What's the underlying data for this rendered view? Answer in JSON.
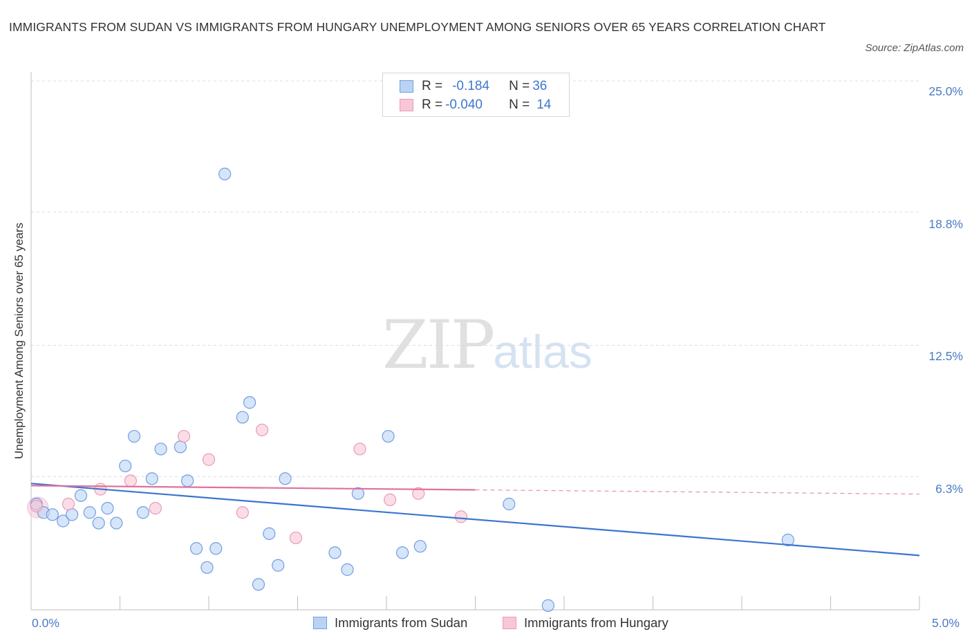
{
  "title": "IMMIGRANTS FROM SUDAN VS IMMIGRANTS FROM HUNGARY UNEMPLOYMENT AMONG SENIORS OVER 65 YEARS CORRELATION CHART",
  "source": "Source: ZipAtlas.com",
  "watermark": {
    "zip": "ZIP",
    "atlas": "atlas"
  },
  "colors": {
    "sudan": "#3a74d0",
    "hungary": "#e0719a",
    "sudan_fill": "#bad3f5",
    "hungary_fill": "#f8c7d7",
    "tick": "#4a7cc4"
  },
  "legend": {
    "rows": [
      {
        "r_label": "R = ",
        "r_value": "-0.184",
        "n_label": "N = ",
        "n_value": "36"
      },
      {
        "r_label": "R = ",
        "r_value": "-0.040",
        "n_label": "N = ",
        "n_value": "14"
      }
    ]
  },
  "bottom_legend": [
    "Immigrants from Sudan",
    "Immigrants from Hungary"
  ],
  "chart_data": {
    "type": "scatter",
    "title": "IMMIGRANTS FROM SUDAN VS IMMIGRANTS FROM HUNGARY UNEMPLOYMENT AMONG SENIORS OVER 65 YEARS CORRELATION CHART",
    "xlabel": "",
    "ylabel": "Unemployment Among Seniors over 65 years",
    "xlim": [
      0,
      5.0
    ],
    "ylim": [
      0,
      25.0
    ],
    "x_tick_labels": [
      "0.0%",
      "5.0%"
    ],
    "y_tick_labels": [
      "25.0%",
      "18.8%",
      "12.5%",
      "6.3%"
    ],
    "y_ticks": [
      25.0,
      18.8,
      12.5,
      6.3
    ],
    "grid": true,
    "series": [
      {
        "name": "Immigrants from Sudan",
        "points": [
          [
            0.03,
            5.0
          ],
          [
            0.07,
            4.6
          ],
          [
            0.12,
            4.5
          ],
          [
            0.18,
            4.2
          ],
          [
            0.23,
            4.5
          ],
          [
            0.28,
            5.4
          ],
          [
            0.33,
            4.6
          ],
          [
            0.38,
            4.1
          ],
          [
            0.43,
            4.8
          ],
          [
            0.48,
            4.1
          ],
          [
            0.53,
            6.8
          ],
          [
            0.58,
            8.2
          ],
          [
            0.63,
            4.6
          ],
          [
            0.68,
            6.2
          ],
          [
            0.73,
            7.6
          ],
          [
            0.84,
            7.7
          ],
          [
            0.88,
            6.1
          ],
          [
            0.93,
            2.9
          ],
          [
            0.99,
            2.0
          ],
          [
            1.04,
            2.9
          ],
          [
            1.09,
            20.6
          ],
          [
            1.19,
            9.1
          ],
          [
            1.23,
            9.8
          ],
          [
            1.28,
            1.2
          ],
          [
            1.34,
            3.6
          ],
          [
            1.39,
            2.1
          ],
          [
            1.43,
            6.2
          ],
          [
            1.71,
            2.7
          ],
          [
            1.78,
            1.9
          ],
          [
            1.84,
            5.5
          ],
          [
            2.01,
            8.2
          ],
          [
            2.09,
            2.7
          ],
          [
            2.19,
            3.0
          ],
          [
            2.69,
            5.0
          ],
          [
            2.91,
            0.2
          ],
          [
            4.26,
            3.3
          ]
        ],
        "trend": {
          "x": [
            0.0,
            5.0
          ],
          "y": [
            5.97,
            2.57
          ]
        }
      },
      {
        "name": "Immigrants from Hungary",
        "points": [
          [
            0.03,
            4.9
          ],
          [
            0.21,
            5.0
          ],
          [
            0.39,
            5.7
          ],
          [
            0.56,
            6.1
          ],
          [
            0.7,
            4.8
          ],
          [
            0.86,
            8.2
          ],
          [
            1.0,
            7.1
          ],
          [
            1.19,
            4.6
          ],
          [
            1.3,
            8.5
          ],
          [
            1.49,
            3.4
          ],
          [
            1.85,
            7.6
          ],
          [
            2.02,
            5.2
          ],
          [
            2.18,
            5.5
          ],
          [
            2.42,
            4.4
          ]
        ],
        "trend": {
          "x": [
            0.0,
            2.5
          ],
          "y": [
            5.87,
            5.67
          ]
        },
        "trend_dashed": {
          "x": [
            2.5,
            5.0
          ],
          "y": [
            5.67,
            5.47
          ]
        }
      }
    ]
  }
}
